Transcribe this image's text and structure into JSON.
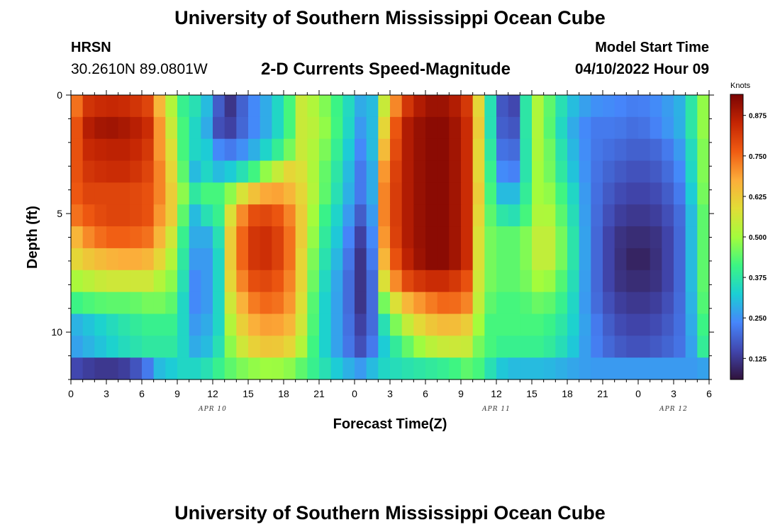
{
  "header": {
    "title": "University of Southern Mississippi Ocean Cube",
    "station": "HRSN",
    "coords": "30.2610N  89.0801W",
    "subtitle": "2-D Currents Speed-Magnitude",
    "start_label": "Model Start Time",
    "start_value": "04/10/2022 Hour 09"
  },
  "footer": {
    "title": "University of Southern Mississippi Ocean Cube"
  },
  "chart_data": {
    "type": "heatmap",
    "xlabel": "Forecast Time(Z)",
    "ylabel": "Depth (ft)",
    "x_tick_labels": [
      "0",
      "3",
      "6",
      "9",
      "12",
      "15",
      "18",
      "21",
      "0",
      "3",
      "6",
      "9",
      "12",
      "15",
      "18",
      "21",
      "0",
      "3",
      "6"
    ],
    "x_date_labels": [
      {
        "label": "APR 10",
        "at_hour": 12
      },
      {
        "label": "APR 11",
        "at_hour": 36
      },
      {
        "label": "APR 12",
        "at_hour": 51
      }
    ],
    "xlim_hours": [
      0,
      54
    ],
    "y_tick_labels": [
      "0",
      "5",
      "10"
    ],
    "ylim_ft": [
      0,
      12
    ],
    "colorbar": {
      "title": "Knots",
      "ticks": [
        "0.125",
        "0.250",
        "0.375",
        "0.500",
        "0.625",
        "0.750",
        "0.875"
      ],
      "range": [
        0.06,
        0.94
      ],
      "colors": [
        "#30123b",
        "#4146ad",
        "#4686fb",
        "#1bcfd4",
        "#3cf583",
        "#a4fc3c",
        "#e1dd37",
        "#fcad3a",
        "#f05b12",
        "#c42503",
        "#7a0403"
      ]
    },
    "depth_levels_ft": [
      0,
      1,
      2,
      3,
      4,
      5,
      6,
      7,
      8,
      9,
      10,
      11,
      12
    ],
    "time_keyframes_hours": [
      0,
      1,
      3,
      5,
      6.5,
      7.5,
      8.5,
      9.5,
      10.5,
      11.5,
      12.5,
      13.5,
      15,
      17,
      18.5,
      19.5,
      21,
      23,
      24.5,
      25.5,
      26.5,
      28,
      30,
      32,
      33.5,
      34.5,
      35.5,
      36.3,
      37,
      38,
      39,
      40,
      42,
      44,
      46,
      48,
      50,
      52,
      53,
      54
    ],
    "speed_knots": [
      [
        0.66,
        0.82,
        0.85,
        0.84,
        0.8,
        0.66,
        0.52,
        0.4,
        0.36,
        0.3,
        0.18,
        0.12,
        0.22,
        0.3,
        0.42,
        0.55,
        0.5,
        0.38,
        0.28,
        0.3,
        0.55,
        0.8,
        0.9,
        0.9,
        0.82,
        0.6,
        0.36,
        0.2,
        0.1,
        0.2,
        0.55,
        0.48,
        0.32,
        0.25,
        0.24,
        0.22,
        0.25,
        0.3,
        0.45,
        0.52
      ],
      [
        0.7,
        0.86,
        0.9,
        0.88,
        0.84,
        0.7,
        0.55,
        0.42,
        0.34,
        0.28,
        0.16,
        0.14,
        0.22,
        0.3,
        0.42,
        0.55,
        0.52,
        0.38,
        0.26,
        0.3,
        0.6,
        0.86,
        0.92,
        0.92,
        0.84,
        0.62,
        0.36,
        0.2,
        0.14,
        0.2,
        0.55,
        0.48,
        0.3,
        0.22,
        0.22,
        0.2,
        0.24,
        0.3,
        0.45,
        0.52
      ],
      [
        0.72,
        0.84,
        0.86,
        0.86,
        0.82,
        0.7,
        0.58,
        0.42,
        0.34,
        0.32,
        0.24,
        0.22,
        0.26,
        0.36,
        0.46,
        0.55,
        0.5,
        0.36,
        0.24,
        0.3,
        0.65,
        0.86,
        0.92,
        0.92,
        0.84,
        0.6,
        0.38,
        0.22,
        0.18,
        0.22,
        0.52,
        0.5,
        0.32,
        0.22,
        0.2,
        0.18,
        0.2,
        0.28,
        0.42,
        0.52
      ],
      [
        0.74,
        0.82,
        0.84,
        0.84,
        0.8,
        0.72,
        0.6,
        0.44,
        0.3,
        0.34,
        0.3,
        0.32,
        0.38,
        0.52,
        0.6,
        0.58,
        0.48,
        0.34,
        0.22,
        0.28,
        0.7,
        0.86,
        0.92,
        0.92,
        0.84,
        0.6,
        0.4,
        0.25,
        0.22,
        0.24,
        0.5,
        0.5,
        0.34,
        0.22,
        0.18,
        0.16,
        0.18,
        0.26,
        0.42,
        0.52
      ],
      [
        0.74,
        0.8,
        0.8,
        0.8,
        0.78,
        0.72,
        0.62,
        0.48,
        0.38,
        0.42,
        0.42,
        0.48,
        0.62,
        0.7,
        0.66,
        0.6,
        0.48,
        0.32,
        0.22,
        0.28,
        0.72,
        0.86,
        0.92,
        0.92,
        0.84,
        0.62,
        0.42,
        0.3,
        0.3,
        0.3,
        0.48,
        0.52,
        0.38,
        0.22,
        0.16,
        0.14,
        0.16,
        0.24,
        0.4,
        0.52
      ],
      [
        0.72,
        0.76,
        0.8,
        0.8,
        0.78,
        0.7,
        0.62,
        0.44,
        0.3,
        0.36,
        0.4,
        0.58,
        0.78,
        0.8,
        0.72,
        0.62,
        0.44,
        0.3,
        0.18,
        0.26,
        0.72,
        0.86,
        0.92,
        0.92,
        0.84,
        0.6,
        0.44,
        0.38,
        0.36,
        0.36,
        0.48,
        0.55,
        0.4,
        0.22,
        0.14,
        0.12,
        0.14,
        0.22,
        0.38,
        0.5
      ],
      [
        0.62,
        0.7,
        0.76,
        0.76,
        0.74,
        0.66,
        0.56,
        0.4,
        0.28,
        0.28,
        0.36,
        0.62,
        0.82,
        0.84,
        0.74,
        0.62,
        0.42,
        0.28,
        0.14,
        0.24,
        0.7,
        0.86,
        0.92,
        0.92,
        0.84,
        0.58,
        0.46,
        0.44,
        0.44,
        0.44,
        0.5,
        0.58,
        0.42,
        0.22,
        0.12,
        0.1,
        0.12,
        0.22,
        0.38,
        0.5
      ],
      [
        0.58,
        0.62,
        0.66,
        0.68,
        0.66,
        0.6,
        0.52,
        0.38,
        0.26,
        0.26,
        0.34,
        0.62,
        0.82,
        0.84,
        0.74,
        0.6,
        0.4,
        0.26,
        0.12,
        0.22,
        0.66,
        0.84,
        0.92,
        0.92,
        0.84,
        0.58,
        0.46,
        0.44,
        0.44,
        0.44,
        0.5,
        0.58,
        0.42,
        0.22,
        0.12,
        0.08,
        0.12,
        0.22,
        0.38,
        0.5
      ],
      [
        0.5,
        0.52,
        0.56,
        0.56,
        0.56,
        0.52,
        0.48,
        0.36,
        0.24,
        0.26,
        0.34,
        0.6,
        0.78,
        0.8,
        0.72,
        0.6,
        0.38,
        0.24,
        0.12,
        0.2,
        0.58,
        0.78,
        0.84,
        0.84,
        0.78,
        0.56,
        0.46,
        0.44,
        0.44,
        0.44,
        0.48,
        0.52,
        0.4,
        0.22,
        0.12,
        0.1,
        0.12,
        0.22,
        0.38,
        0.5
      ],
      [
        0.4,
        0.42,
        0.44,
        0.44,
        0.46,
        0.46,
        0.44,
        0.34,
        0.24,
        0.26,
        0.34,
        0.56,
        0.72,
        0.76,
        0.7,
        0.58,
        0.36,
        0.24,
        0.12,
        0.2,
        0.46,
        0.64,
        0.72,
        0.76,
        0.72,
        0.54,
        0.44,
        0.42,
        0.42,
        0.42,
        0.44,
        0.46,
        0.38,
        0.22,
        0.14,
        0.12,
        0.14,
        0.22,
        0.36,
        0.5
      ],
      [
        0.28,
        0.3,
        0.34,
        0.38,
        0.4,
        0.4,
        0.4,
        0.34,
        0.26,
        0.28,
        0.34,
        0.52,
        0.66,
        0.7,
        0.66,
        0.56,
        0.36,
        0.24,
        0.14,
        0.2,
        0.36,
        0.52,
        0.62,
        0.66,
        0.62,
        0.5,
        0.42,
        0.42,
        0.42,
        0.42,
        0.42,
        0.42,
        0.36,
        0.24,
        0.16,
        0.14,
        0.16,
        0.22,
        0.34,
        0.48
      ],
      [
        0.26,
        0.28,
        0.32,
        0.36,
        0.38,
        0.38,
        0.38,
        0.34,
        0.28,
        0.3,
        0.36,
        0.48,
        0.6,
        0.64,
        0.6,
        0.52,
        0.36,
        0.24,
        0.16,
        0.22,
        0.32,
        0.42,
        0.52,
        0.56,
        0.55,
        0.46,
        0.42,
        0.4,
        0.4,
        0.4,
        0.4,
        0.4,
        0.34,
        0.24,
        0.18,
        0.16,
        0.18,
        0.22,
        0.32,
        0.46
      ],
      [
        0.16,
        0.14,
        0.12,
        0.14,
        0.22,
        0.3,
        0.32,
        0.34,
        0.34,
        0.36,
        0.4,
        0.44,
        0.48,
        0.5,
        0.48,
        0.44,
        0.38,
        0.3,
        0.26,
        0.3,
        0.34,
        0.36,
        0.38,
        0.4,
        0.44,
        0.42,
        0.36,
        0.32,
        0.3,
        0.3,
        0.3,
        0.3,
        0.28,
        0.26,
        0.26,
        0.26,
        0.26,
        0.26,
        0.26,
        0.28
      ]
    ]
  }
}
